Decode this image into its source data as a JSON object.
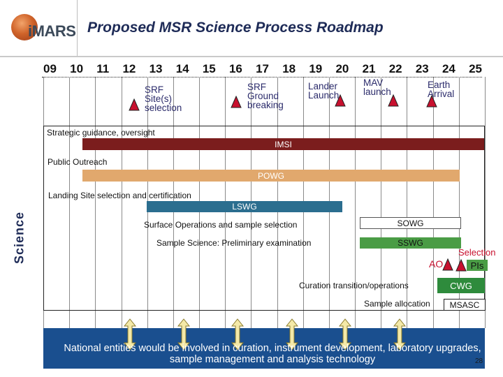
{
  "header": {
    "logo_text": "iMARS",
    "title": "Proposed MSR Science Process Roadmap"
  },
  "timeline": {
    "years": [
      "09",
      "10",
      "11",
      "12",
      "13",
      "14",
      "15",
      "16",
      "17",
      "18",
      "19",
      "20",
      "21",
      "22",
      "23",
      "24",
      "25"
    ]
  },
  "milestones": [
    {
      "label": "SRF\nSite(s)\nselection"
    },
    {
      "label": "SRF\nGround\nbreaking"
    },
    {
      "label": "Lander\nLaunch"
    },
    {
      "label": "MAV\nlaunch"
    },
    {
      "label": "Earth\nArrival"
    }
  ],
  "sections": {
    "strategic": "Strategic guidance, oversight",
    "imsi": "IMSI",
    "outreach": "Public Outreach",
    "powg": "POWG",
    "landing": "Landing Site selection and certification",
    "lswg": "LSWG",
    "surface_ops": "Surface Operations and sample selection",
    "sowg": "SOWG",
    "sample_science": "Sample Science: Preliminary examination",
    "sswg": "SSWG",
    "ao": "AO",
    "selection": "Selection",
    "pis": "PIs",
    "curation": "Curation transition/operations",
    "cwg": "CWG",
    "allocation": "Sample allocation",
    "msasc": "MSASC"
  },
  "side_label": "Science",
  "footer": {
    "text": "National entities would be involved in curation, instrument development, laboratory upgrades, sample management and analysis technology",
    "page_number": "28"
  },
  "colors": {
    "title": "#1e2b57",
    "imsi_bar": "#7b1d1d",
    "powg_bar": "#e1a86d",
    "lswg_bar": "#2b6e8f",
    "sswg_bar": "#4a9c45",
    "cwg_bar": "#2e8b3c",
    "milestone_marker": "#c8102e",
    "footer_band": "#1a4f8f"
  }
}
